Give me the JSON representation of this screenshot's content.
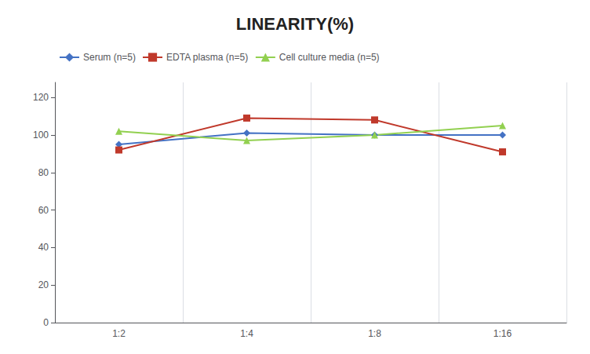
{
  "chart_data": {
    "type": "line",
    "title": "LINEARITY(%)",
    "categories": [
      "1:2",
      "1:4",
      "1:8",
      "1:16"
    ],
    "series": [
      {
        "name": "Serum (n=5)",
        "color": "#4472C4",
        "marker": "diamond",
        "values": [
          95,
          101,
          100,
          100
        ]
      },
      {
        "name": "EDTA plasma (n=5)",
        "color": "#C0392B",
        "marker": "square",
        "values": [
          92,
          109,
          108,
          91
        ]
      },
      {
        "name": "Cell culture media (n=5)",
        "color": "#92D050",
        "marker": "triangle",
        "values": [
          102,
          97,
          100,
          105
        ]
      }
    ],
    "ylim": [
      0,
      128
    ],
    "yticks": [
      0,
      20,
      40,
      60,
      80,
      100,
      120
    ],
    "grid": true,
    "legend": "top left"
  }
}
